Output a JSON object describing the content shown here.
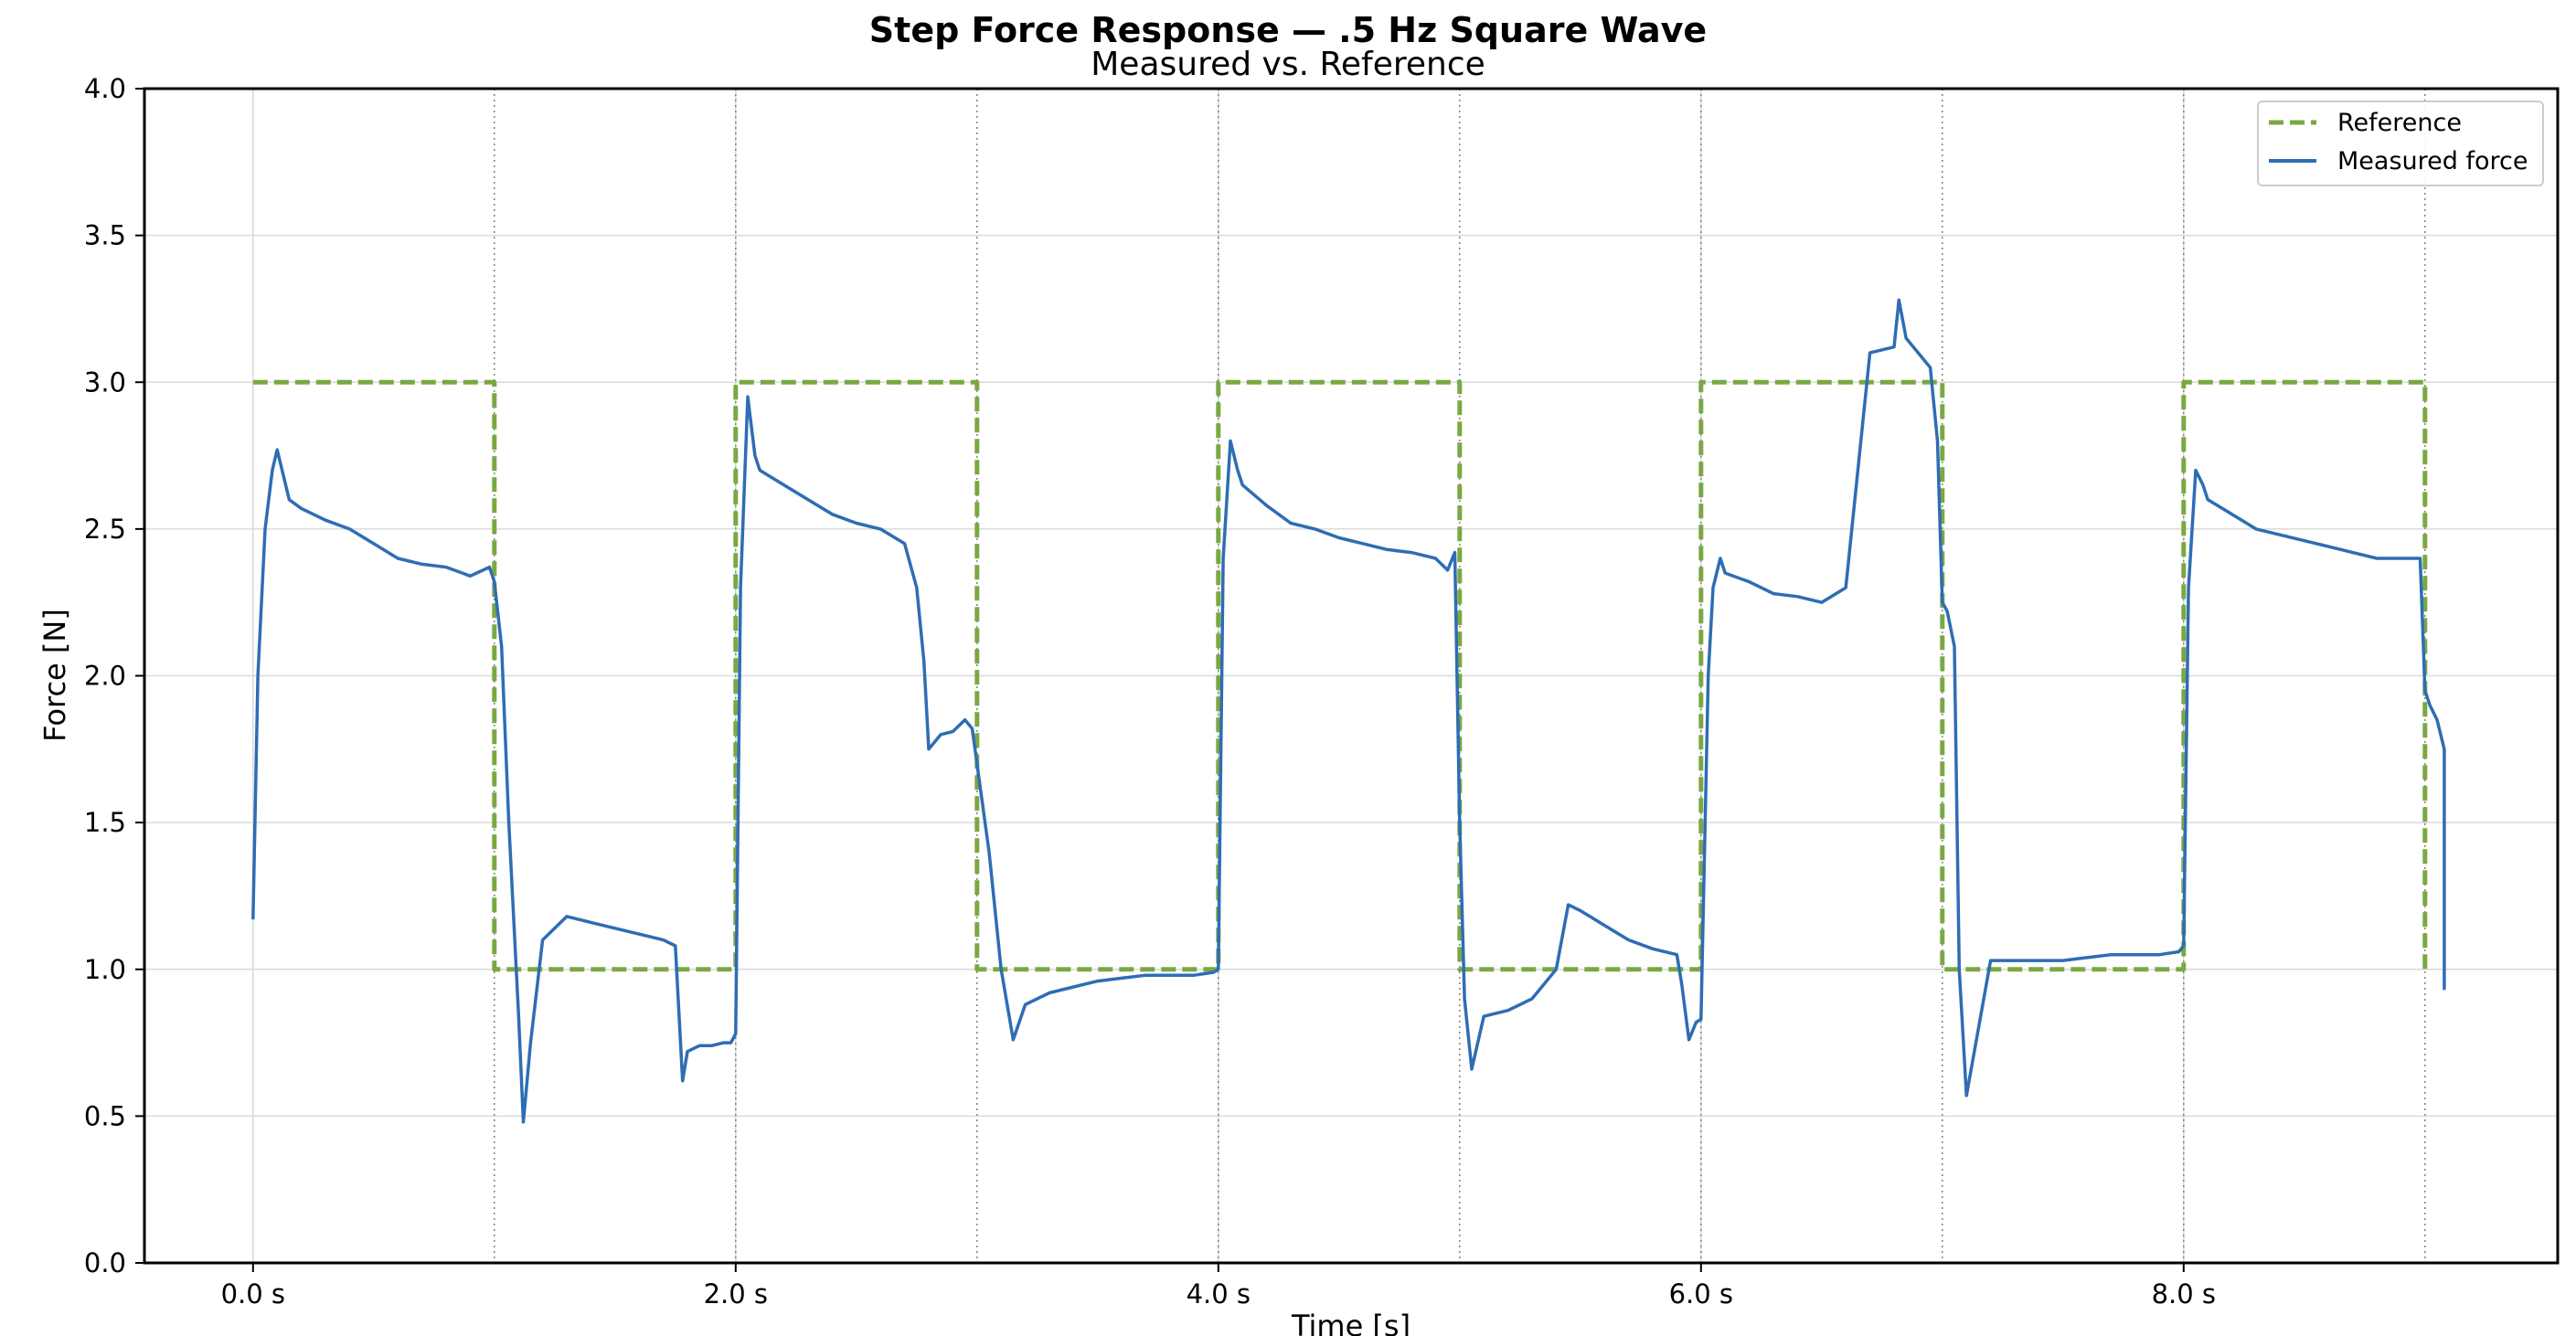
{
  "chart_data": {
    "type": "line",
    "title": "Step Force Response  —  .5 Hz Square Wave",
    "subtitle": "Measured vs. Reference",
    "xlabel": "Time [s]",
    "ylabel": "Force [N]",
    "xlim": [
      -0.45,
      9.55
    ],
    "ylim": [
      0,
      4
    ],
    "x_ticks": [
      0,
      2,
      4,
      6,
      8
    ],
    "x_tick_labels": [
      "0.0 s",
      "2.0 s",
      "4.0 s",
      "6.0 s",
      "8.0 s"
    ],
    "y_ticks": [
      0,
      0.5,
      1,
      1.5,
      2,
      2.5,
      3,
      3.5,
      4
    ],
    "y_tick_labels": [
      "0.0",
      "0.5",
      "1.0",
      "1.5",
      "2.0",
      "2.5",
      "3.0",
      "3.5",
      "4.0"
    ],
    "vertical_markers": [
      1,
      2,
      3,
      4,
      5,
      6,
      7,
      8,
      9
    ],
    "grid": true,
    "legend_position": "top-right",
    "colors": {
      "reference": "#7aa843",
      "measured": "#2e6db4",
      "grid": "#d9d9d9",
      "marker": "#808080"
    },
    "series": [
      {
        "name": "Reference",
        "style": "dashed",
        "x": [
          0,
          1,
          1,
          2,
          2,
          3,
          3,
          4,
          4,
          5,
          5,
          6,
          6,
          7,
          7,
          8,
          8,
          9,
          9
        ],
        "y": [
          3,
          3,
          1,
          1,
          3,
          3,
          1,
          1,
          3,
          3,
          1,
          1,
          3,
          3,
          1,
          1,
          3,
          3,
          1
        ]
      },
      {
        "name": "Measured force",
        "style": "solid",
        "x": [
          0,
          0.02,
          0.05,
          0.08,
          0.1,
          0.15,
          0.2,
          0.3,
          0.4,
          0.5,
          0.6,
          0.7,
          0.8,
          0.9,
          0.98,
          1.0,
          1.03,
          1.06,
          1.1,
          1.12,
          1.15,
          1.2,
          1.3,
          1.4,
          1.5,
          1.6,
          1.7,
          1.75,
          1.78,
          1.8,
          1.85,
          1.9,
          1.95,
          1.98,
          2.0,
          2.02,
          2.05,
          2.08,
          2.1,
          2.2,
          2.3,
          2.4,
          2.5,
          2.6,
          2.7,
          2.75,
          2.78,
          2.8,
          2.85,
          2.9,
          2.95,
          2.98,
          3.0,
          3.05,
          3.1,
          3.15,
          3.2,
          3.3,
          3.4,
          3.5,
          3.6,
          3.7,
          3.8,
          3.9,
          3.98,
          4.0,
          4.02,
          4.05,
          4.08,
          4.1,
          4.2,
          4.3,
          4.4,
          4.5,
          4.6,
          4.7,
          4.8,
          4.9,
          4.95,
          4.98,
          5.0,
          5.02,
          5.05,
          5.1,
          5.2,
          5.3,
          5.4,
          5.45,
          5.5,
          5.6,
          5.7,
          5.8,
          5.9,
          5.92,
          5.95,
          5.98,
          6.0,
          6.03,
          6.05,
          6.08,
          6.1,
          6.2,
          6.3,
          6.4,
          6.5,
          6.6,
          6.65,
          6.7,
          6.8,
          6.82,
          6.85,
          6.9,
          6.95,
          6.98,
          7.0,
          7.02,
          7.05,
          7.07,
          7.1,
          7.2,
          7.3,
          7.4,
          7.5,
          7.6,
          7.7,
          7.8,
          7.9,
          7.98,
          8.0,
          8.02,
          8.05,
          8.08,
          8.1,
          8.2,
          8.3,
          8.4,
          8.5,
          8.6,
          8.7,
          8.8,
          8.9,
          8.98,
          9.0,
          9.02,
          9.05,
          9.08,
          9.08
        ],
        "y": [
          1.17,
          2.0,
          2.5,
          2.7,
          2.77,
          2.6,
          2.57,
          2.53,
          2.5,
          2.45,
          2.4,
          2.38,
          2.37,
          2.34,
          2.37,
          2.32,
          2.1,
          1.5,
          0.85,
          0.48,
          0.75,
          1.1,
          1.18,
          1.16,
          1.14,
          1.12,
          1.1,
          1.08,
          0.62,
          0.72,
          0.74,
          0.74,
          0.75,
          0.75,
          0.78,
          2.3,
          2.95,
          2.75,
          2.7,
          2.65,
          2.6,
          2.55,
          2.52,
          2.5,
          2.45,
          2.3,
          2.05,
          1.75,
          1.8,
          1.81,
          1.85,
          1.82,
          1.7,
          1.4,
          1.0,
          0.76,
          0.88,
          0.92,
          0.94,
          0.96,
          0.97,
          0.98,
          0.98,
          0.98,
          0.99,
          1.0,
          2.4,
          2.8,
          2.7,
          2.65,
          2.58,
          2.52,
          2.5,
          2.47,
          2.45,
          2.43,
          2.42,
          2.4,
          2.36,
          2.42,
          1.5,
          0.9,
          0.66,
          0.84,
          0.86,
          0.9,
          1.0,
          1.22,
          1.2,
          1.15,
          1.1,
          1.07,
          1.05,
          0.95,
          0.76,
          0.82,
          0.83,
          2.0,
          2.3,
          2.4,
          2.35,
          2.32,
          2.28,
          2.27,
          2.25,
          2.3,
          2.7,
          3.1,
          3.12,
          3.28,
          3.15,
          3.1,
          3.05,
          2.8,
          2.25,
          2.22,
          2.1,
          1.0,
          0.57,
          1.03,
          1.03,
          1.03,
          1.03,
          1.04,
          1.05,
          1.05,
          1.05,
          1.06,
          1.08,
          2.3,
          2.7,
          2.65,
          2.6,
          2.55,
          2.5,
          2.48,
          2.46,
          2.44,
          2.42,
          2.4,
          2.4,
          2.4,
          1.95,
          1.9,
          1.85,
          1.75,
          0.93
        ]
      }
    ]
  }
}
